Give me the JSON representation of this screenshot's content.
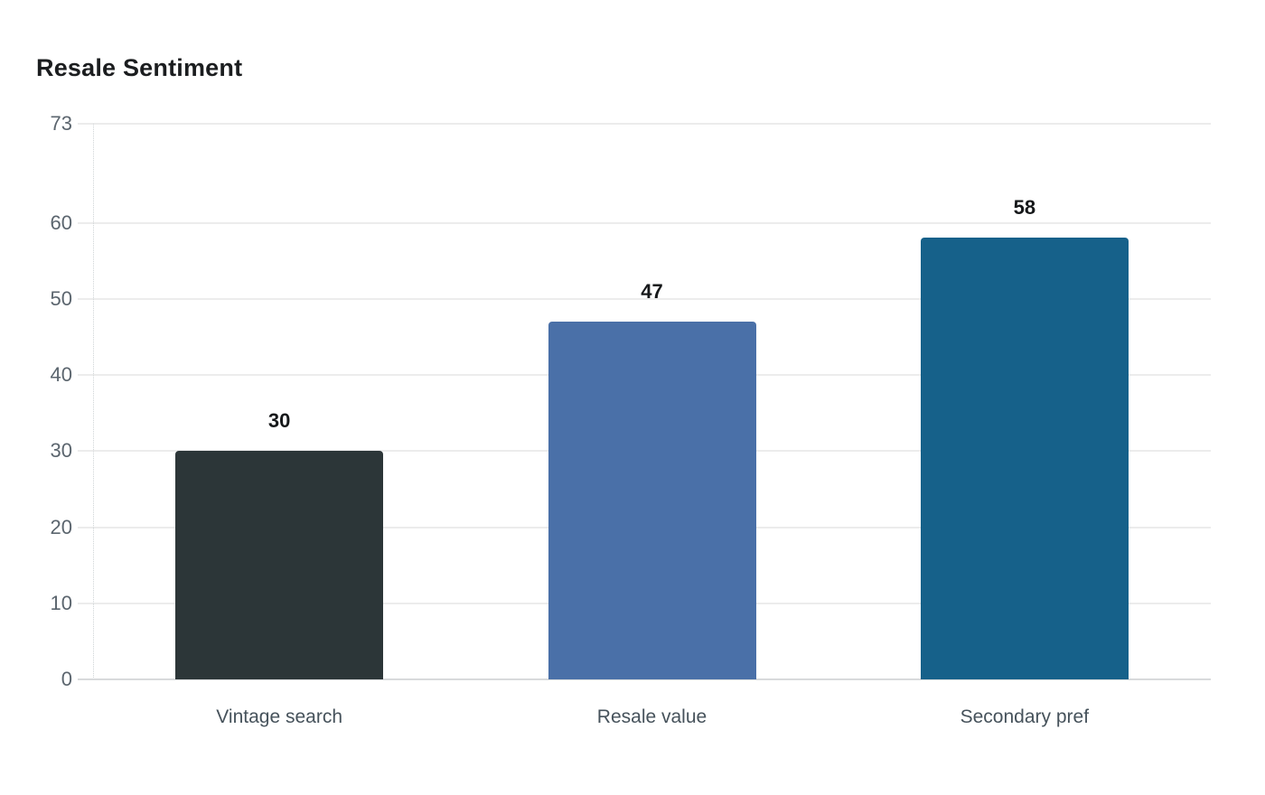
{
  "page": {
    "background": "#ffffff"
  },
  "chart_data": {
    "type": "bar",
    "title": "Resale Sentiment",
    "categories": [
      "Vintage search",
      "Resale value",
      "Secondary pref"
    ],
    "values": [
      30,
      47,
      58
    ],
    "bar_colors": [
      "#2c3638",
      "#4a70a8",
      "#16618a"
    ],
    "yticks": [
      0,
      10,
      20,
      30,
      40,
      50,
      60,
      73
    ],
    "ylim": [
      0,
      73
    ],
    "xlabel": "",
    "ylabel": "",
    "grid": "horizontal",
    "legend": "none",
    "colors": {
      "title_text": "#1b1d1f",
      "tick_text": "#5b656e",
      "category_text": "#46525b",
      "value_label_text": "#16181a",
      "gridline": "#ececec",
      "baseline": "#d8dadc",
      "background": "#ffffff"
    }
  }
}
